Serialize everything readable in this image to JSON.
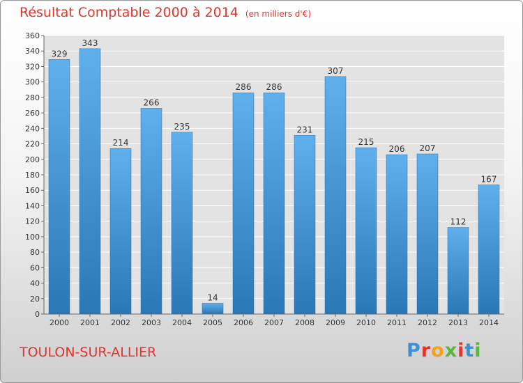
{
  "header": {
    "title": "Résultat Comptable 2000 à 2014",
    "subtitle": "(en milliers d'€)"
  },
  "footer": {
    "place": "TOULON-SUR-ALLIER",
    "logo": "Proxiti"
  },
  "colors": {
    "title": "#e0362b",
    "bar_top": "#5fb0ec",
    "bar_bottom": "#2a77b6"
  },
  "chart_data": {
    "type": "bar",
    "title": "Résultat Comptable 2000 à 2014",
    "subtitle": "(en milliers d'€)",
    "categories": [
      "2000",
      "2001",
      "2002",
      "2003",
      "2004",
      "2005",
      "2006",
      "2007",
      "2008",
      "2009",
      "2010",
      "2011",
      "2012",
      "2013",
      "2014"
    ],
    "values": [
      329,
      343,
      214,
      266,
      235,
      14,
      286,
      286,
      231,
      307,
      215,
      206,
      207,
      112,
      167
    ],
    "ylim": [
      0,
      360
    ],
    "yticks": [
      0,
      20,
      40,
      60,
      80,
      100,
      120,
      140,
      160,
      180,
      200,
      220,
      240,
      260,
      280,
      300,
      320,
      340,
      360
    ],
    "grid": true,
    "legend": "none"
  }
}
